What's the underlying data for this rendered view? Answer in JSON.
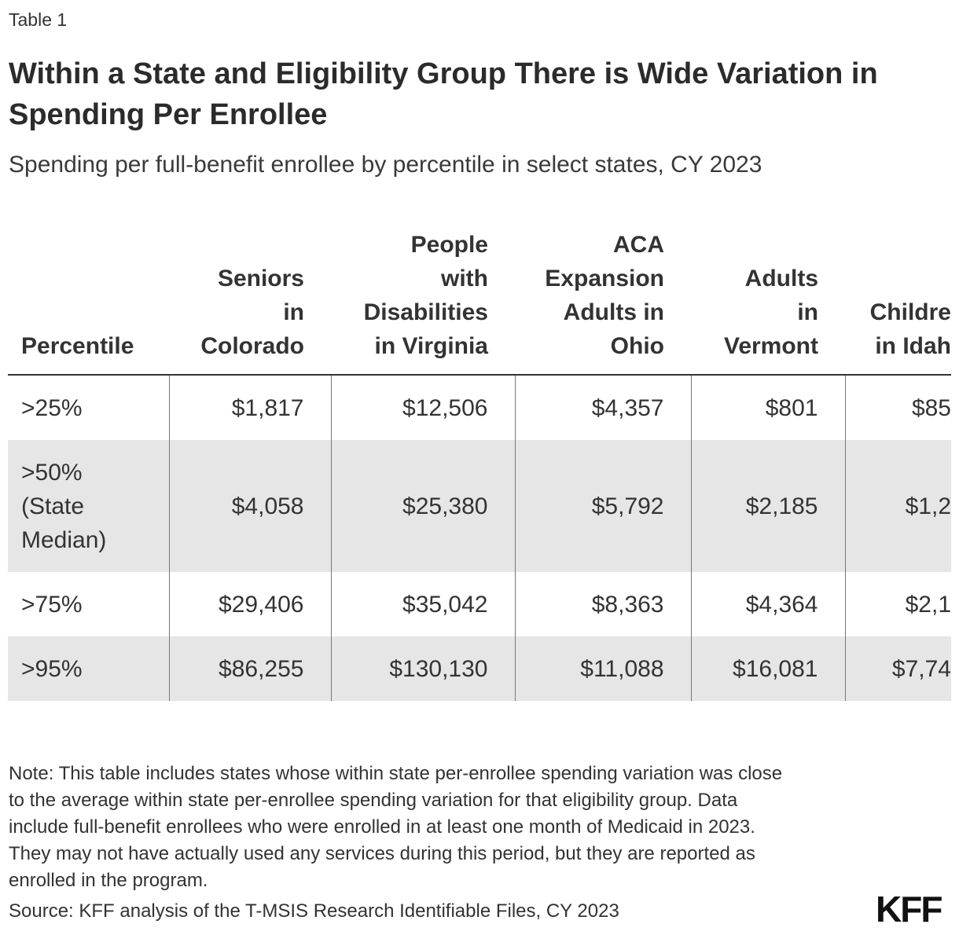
{
  "label": "Table 1",
  "title": "Within a State and Eligibility Group There is Wide Variation in Spending Per Enrollee",
  "subtitle": "Spending per full-benefit enrollee by percentile in select states, CY 2023",
  "table": {
    "columns": [
      [
        "Percentile"
      ],
      [
        "Seniors",
        "in",
        "Colorado"
      ],
      [
        "People",
        "with",
        "Disabilities",
        "in Virginia"
      ],
      [
        "ACA",
        "Expansion",
        "Adults in",
        "Ohio"
      ],
      [
        "Adults",
        "in",
        "Vermont"
      ],
      [
        "Childre",
        "in Idah"
      ]
    ],
    "rows": [
      [
        [
          ">25%"
        ],
        "$1,817",
        "$12,506",
        "$4,357",
        "$801",
        "$85"
      ],
      [
        [
          ">50%",
          "(State",
          "Median)"
        ],
        "$4,058",
        "$25,380",
        "$5,792",
        "$2,185",
        "$1,2"
      ],
      [
        [
          ">75%"
        ],
        "$29,406",
        "$35,042",
        "$8,363",
        "$4,364",
        "$2,1"
      ],
      [
        [
          ">95%"
        ],
        "$86,255",
        "$130,130",
        "$11,088",
        "$16,081",
        "$7,74"
      ]
    ]
  },
  "note": [
    "Note: This table includes states whose within state per-enrollee spending variation was close",
    "to the average within state per-enrollee spending variation for that eligibility group. Data",
    "include full-benefit enrollees who were enrolled in at least one month of Medicaid in 2023.",
    "They may not have actually used any services during this period, but they are reported as",
    "enrolled in the program."
  ],
  "source": "Source: KFF analysis of the T-MSIS Research Identifiable Files, CY 2023",
  "logo": "KFF"
}
